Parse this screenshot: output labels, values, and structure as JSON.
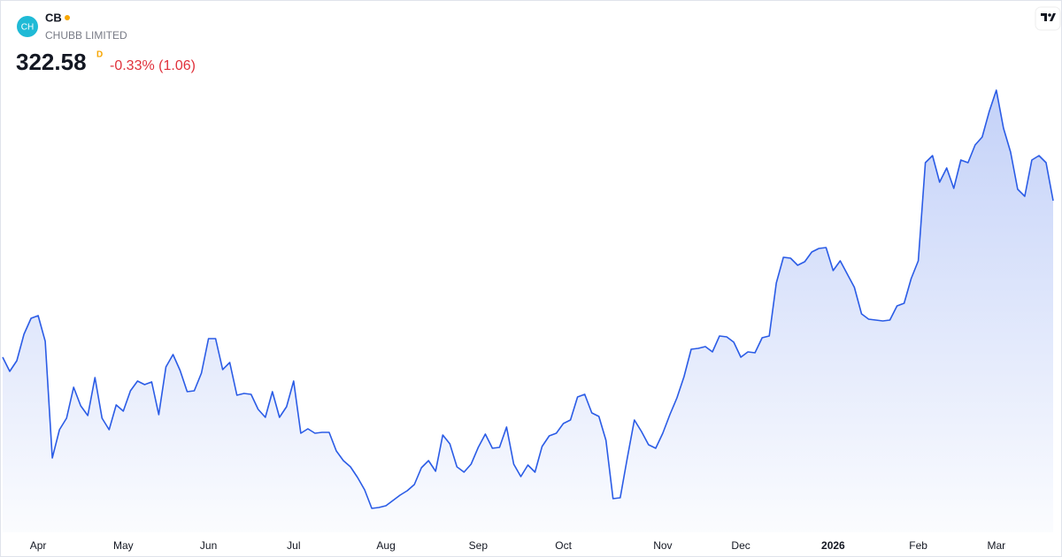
{
  "header": {
    "logo_text": "CH",
    "symbol": "CB",
    "company": "CHUBB LIMITED",
    "price": "322.58",
    "interval": "D",
    "change": "-0.33% (1.06)"
  },
  "chart_data": {
    "type": "line",
    "color": "#2b5ce6",
    "categories": [
      null,
      null,
      null,
      null,
      null,
      "Apr",
      null,
      null,
      null,
      null,
      null,
      null,
      null,
      null,
      null,
      null,
      null,
      "May",
      null,
      null,
      null,
      null,
      null,
      null,
      null,
      null,
      null,
      null,
      null,
      "Jun",
      null,
      null,
      null,
      null,
      null,
      null,
      null,
      null,
      null,
      null,
      null,
      "Jul",
      null,
      null,
      null,
      null,
      null,
      null,
      null,
      null,
      null,
      null,
      null,
      null,
      "Aug",
      null,
      null,
      null,
      null,
      null,
      null,
      null,
      null,
      null,
      null,
      null,
      null,
      "Sep",
      null,
      null,
      null,
      null,
      null,
      null,
      null,
      null,
      null,
      null,
      null,
      "Oct",
      null,
      null,
      null,
      null,
      null,
      null,
      null,
      null,
      null,
      null,
      null,
      null,
      null,
      "Nov",
      null,
      null,
      null,
      null,
      null,
      null,
      null,
      null,
      null,
      null,
      "Dec",
      null,
      null,
      null,
      null,
      null,
      null,
      null,
      null,
      null,
      null,
      null,
      null,
      "2026",
      null,
      null,
      null,
      null,
      null,
      null,
      null,
      null,
      null,
      null,
      null,
      "Feb",
      null,
      null,
      null,
      null,
      null,
      null,
      null,
      null,
      null,
      null,
      "Mar",
      null,
      null,
      null,
      null,
      null,
      null,
      null,
      null
    ],
    "values": [
      287.18,
      283.98,
      286.38,
      292.38,
      295.98,
      296.58,
      290.78,
      264.38,
      270.78,
      273.38,
      280.38,
      276.18,
      273.98,
      282.58,
      273.38,
      270.78,
      276.38,
      274.98,
      279.58,
      281.78,
      280.98,
      281.58,
      274.18,
      284.98,
      287.78,
      284.18,
      279.38,
      279.58,
      283.58,
      291.38,
      291.38,
      284.38,
      285.98,
      278.58,
      278.98,
      278.78,
      275.38,
      273.58,
      279.38,
      273.58,
      275.98,
      281.78,
      269.98,
      270.98,
      269.98,
      270.18,
      270.18,
      265.98,
      263.78,
      262.38,
      259.98,
      257.18,
      252.98,
      253.18,
      253.58,
      254.78,
      255.98,
      256.98,
      258.38,
      262.18,
      263.78,
      261.38,
      269.58,
      267.58,
      262.38,
      261.18,
      262.98,
      266.78,
      269.78,
      266.58,
      266.78,
      271.38,
      262.98,
      260.18,
      262.78,
      261.18,
      266.98,
      269.38,
      269.98,
      272.18,
      272.98,
      278.18,
      278.78,
      274.58,
      273.78,
      268.38,
      255.18,
      255.38,
      264.38,
      272.98,
      270.38,
      267.38,
      266.58,
      269.98,
      274.18,
      277.98,
      282.78,
      288.98,
      289.18,
      289.58,
      288.38,
      291.98,
      291.78,
      290.58,
      287.18,
      288.38,
      288.18,
      291.58,
      291.98,
      303.98,
      309.78,
      309.58,
      307.98,
      308.78,
      310.98,
      311.78,
      311.98,
      306.78,
      308.98,
      305.98,
      302.98,
      296.98,
      295.78,
      295.58,
      295.38,
      295.58,
      298.78,
      299.38,
      304.98,
      308.98,
      331.18,
      332.78,
      326.78,
      329.98,
      325.38,
      331.78,
      331.18,
      335.18,
      336.98,
      342.78,
      347.58,
      338.98,
      333.58,
      325.18,
      323.58,
      331.78,
      332.78,
      331.18,
      322.58
    ]
  }
}
